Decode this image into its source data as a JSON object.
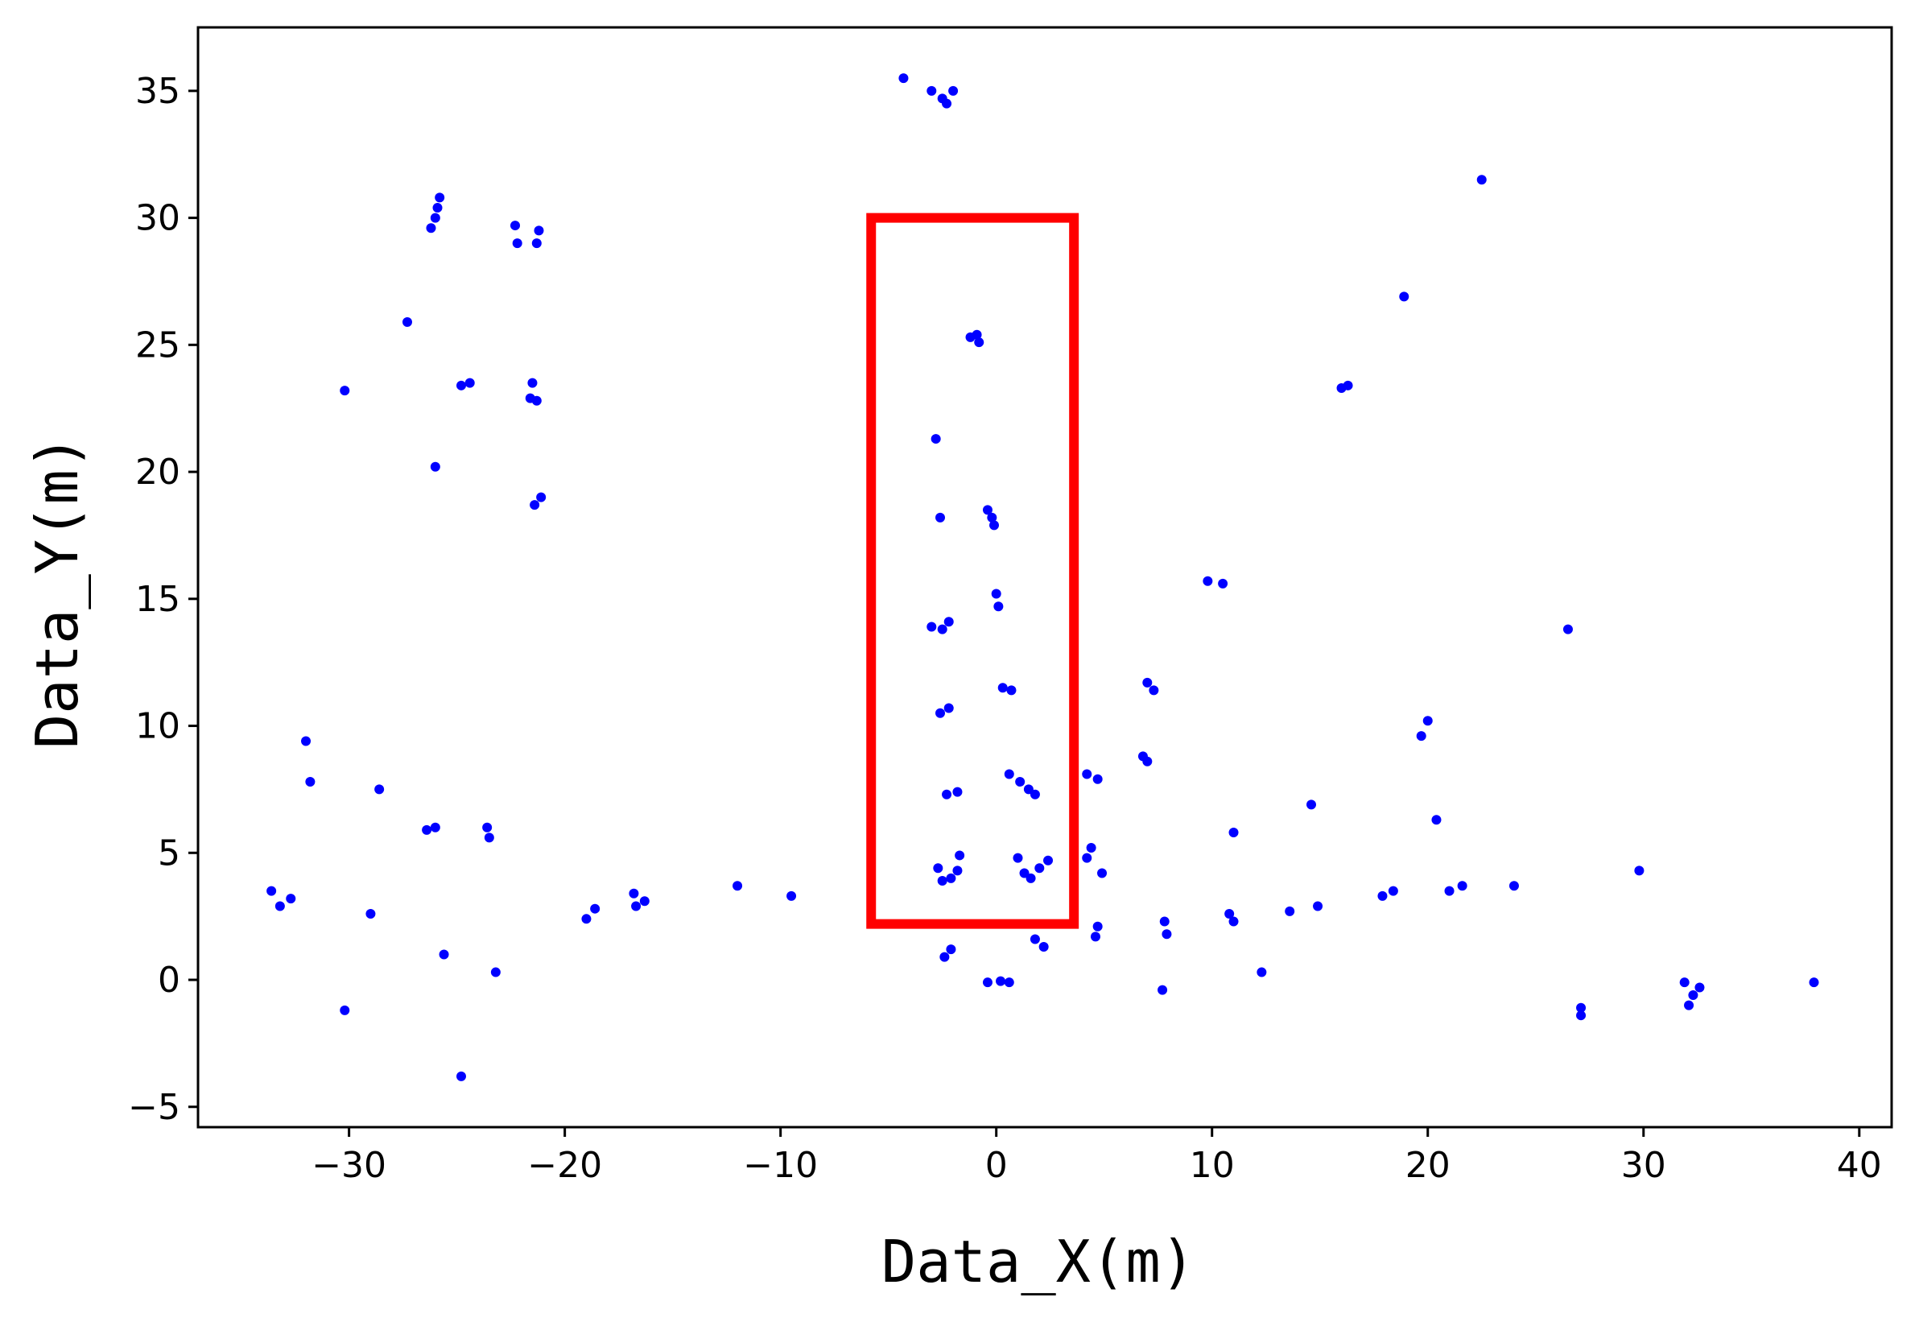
{
  "chart_data": {
    "type": "scatter",
    "title": "",
    "xlabel": "Data_X(m)",
    "ylabel": "Data_Y(m)",
    "xlim": [
      -37,
      41.5
    ],
    "ylim": [
      -5.8,
      37.5
    ],
    "xticks": [
      -30,
      -20,
      -10,
      0,
      10,
      20,
      30,
      40
    ],
    "yticks": [
      -5,
      0,
      5,
      10,
      15,
      20,
      25,
      30,
      35
    ],
    "xtick_labels": [
      "−30",
      "−20",
      "−10",
      "0",
      "10",
      "20",
      "30",
      "40"
    ],
    "ytick_labels": [
      "−5",
      "0",
      "5",
      "10",
      "15",
      "20",
      "25",
      "30",
      "35"
    ],
    "grid": false,
    "point_color": "#0000ff",
    "highlight_box": {
      "x": [
        -5.8,
        3.6
      ],
      "y": [
        2.2,
        30.0
      ],
      "color": "#ff0000"
    },
    "series": [
      {
        "points": [
          [
            -4.3,
            35.5
          ],
          [
            -3.0,
            35.0
          ],
          [
            -2.5,
            34.7
          ],
          [
            -2.3,
            34.5
          ],
          [
            -2.0,
            35.0
          ],
          [
            -25.8,
            30.8
          ],
          [
            -25.9,
            30.4
          ],
          [
            -26.0,
            30.0
          ],
          [
            -26.2,
            29.6
          ],
          [
            -22.3,
            29.7
          ],
          [
            -22.2,
            29.0
          ],
          [
            -21.2,
            29.5
          ],
          [
            -21.3,
            29.0
          ],
          [
            -27.3,
            25.9
          ],
          [
            -1.2,
            25.3
          ],
          [
            -0.9,
            25.4
          ],
          [
            -0.8,
            25.1
          ],
          [
            -30.2,
            23.2
          ],
          [
            -24.8,
            23.4
          ],
          [
            -24.4,
            23.5
          ],
          [
            -21.5,
            23.5
          ],
          [
            -21.6,
            22.9
          ],
          [
            -21.3,
            22.8
          ],
          [
            -26.0,
            20.2
          ],
          [
            -21.4,
            18.7
          ],
          [
            -21.1,
            19.0
          ],
          [
            -2.8,
            21.3
          ],
          [
            -2.6,
            18.2
          ],
          [
            -0.4,
            18.5
          ],
          [
            -0.2,
            18.2
          ],
          [
            -0.1,
            17.9
          ],
          [
            0.0,
            15.2
          ],
          [
            0.1,
            14.7
          ],
          [
            -3.0,
            13.9
          ],
          [
            -2.5,
            13.8
          ],
          [
            -2.2,
            14.1
          ],
          [
            0.3,
            11.5
          ],
          [
            0.7,
            11.4
          ],
          [
            -2.6,
            10.5
          ],
          [
            -2.2,
            10.7
          ],
          [
            -2.3,
            7.3
          ],
          [
            -1.8,
            7.4
          ],
          [
            0.6,
            8.1
          ],
          [
            1.1,
            7.8
          ],
          [
            1.5,
            7.5
          ],
          [
            1.8,
            7.3
          ],
          [
            -2.7,
            4.4
          ],
          [
            -2.5,
            3.9
          ],
          [
            -2.1,
            4.0
          ],
          [
            -1.8,
            4.3
          ],
          [
            -1.7,
            4.9
          ],
          [
            1.0,
            4.8
          ],
          [
            1.3,
            4.2
          ],
          [
            1.6,
            4.0
          ],
          [
            2.0,
            4.4
          ],
          [
            2.4,
            4.7
          ],
          [
            -2.4,
            0.9
          ],
          [
            -2.1,
            1.2
          ],
          [
            1.8,
            1.6
          ],
          [
            2.2,
            1.3
          ],
          [
            -0.4,
            -0.1
          ],
          [
            0.2,
            -0.05
          ],
          [
            0.6,
            -0.1
          ],
          [
            4.2,
            8.1
          ],
          [
            4.7,
            7.9
          ],
          [
            4.4,
            5.2
          ],
          [
            4.2,
            4.8
          ],
          [
            4.9,
            4.2
          ],
          [
            4.7,
            2.1
          ],
          [
            4.6,
            1.7
          ],
          [
            7.0,
            11.7
          ],
          [
            7.3,
            11.4
          ],
          [
            6.8,
            8.8
          ],
          [
            7.0,
            8.6
          ],
          [
            7.8,
            2.3
          ],
          [
            7.9,
            1.8
          ],
          [
            7.7,
            -0.4
          ],
          [
            9.8,
            15.7
          ],
          [
            10.5,
            15.6
          ],
          [
            11.0,
            5.8
          ],
          [
            10.8,
            2.6
          ],
          [
            11.0,
            2.3
          ],
          [
            12.3,
            0.3
          ],
          [
            13.6,
            2.7
          ],
          [
            14.6,
            6.9
          ],
          [
            14.9,
            2.9
          ],
          [
            16.0,
            23.3
          ],
          [
            16.3,
            23.4
          ],
          [
            17.9,
            3.3
          ],
          [
            18.4,
            3.5
          ],
          [
            18.9,
            26.9
          ],
          [
            19.7,
            9.6
          ],
          [
            20.0,
            10.2
          ],
          [
            20.4,
            6.3
          ],
          [
            21.0,
            3.5
          ],
          [
            21.6,
            3.7
          ],
          [
            22.5,
            31.5
          ],
          [
            24.0,
            3.7
          ],
          [
            26.5,
            13.8
          ],
          [
            27.1,
            -1.1
          ],
          [
            27.1,
            -1.4
          ],
          [
            29.8,
            4.3
          ],
          [
            31.9,
            -0.1
          ],
          [
            32.1,
            -1.0
          ],
          [
            32.3,
            -0.6
          ],
          [
            32.6,
            -0.3
          ],
          [
            37.9,
            -0.1
          ],
          [
            -33.6,
            3.5
          ],
          [
            -33.2,
            2.9
          ],
          [
            -32.7,
            3.2
          ],
          [
            -32.0,
            9.4
          ],
          [
            -31.8,
            7.8
          ],
          [
            -30.2,
            -1.2
          ],
          [
            -29.0,
            2.6
          ],
          [
            -28.6,
            7.5
          ],
          [
            -26.4,
            5.9
          ],
          [
            -26.0,
            6.0
          ],
          [
            -25.6,
            1.0
          ],
          [
            -24.8,
            -3.8
          ],
          [
            -23.6,
            6.0
          ],
          [
            -23.5,
            5.6
          ],
          [
            -23.2,
            0.3
          ],
          [
            -19.0,
            2.4
          ],
          [
            -18.6,
            2.8
          ],
          [
            -16.8,
            3.4
          ],
          [
            -16.7,
            2.9
          ],
          [
            -16.3,
            3.1
          ],
          [
            -12.0,
            3.7
          ],
          [
            -9.5,
            3.3
          ]
        ]
      }
    ]
  }
}
